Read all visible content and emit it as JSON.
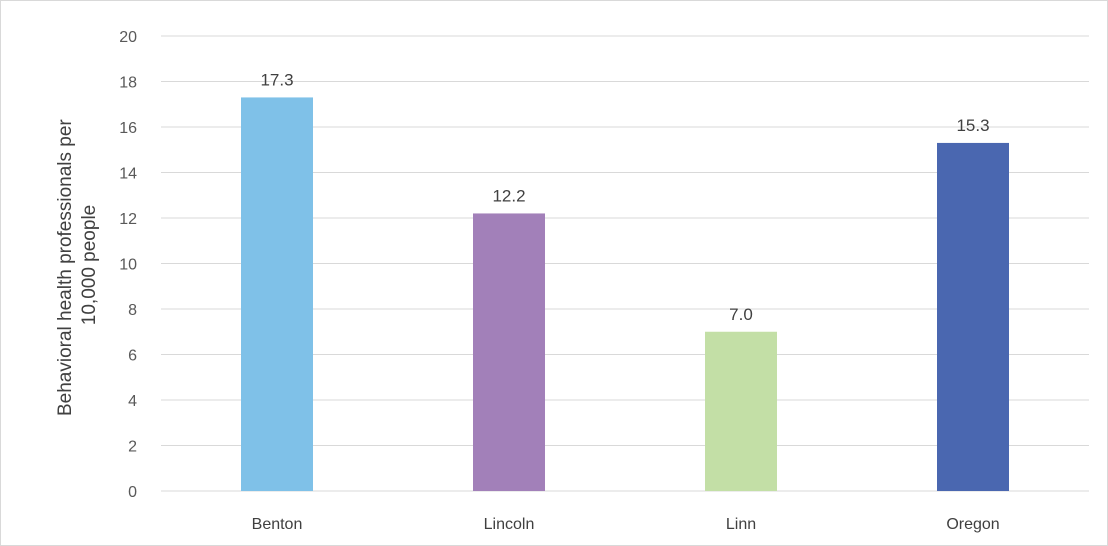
{
  "chart_data": {
    "type": "bar",
    "title": "",
    "xlabel": "",
    "ylabel": "Behavioral health professionals per 10,000 people",
    "ylabel_lines": [
      "Behavioral health professionals per",
      "10,000 people"
    ],
    "categories": [
      "Benton",
      "Lincoln",
      "Linn",
      "Oregon"
    ],
    "values": [
      17.3,
      12.2,
      7.0,
      15.3
    ],
    "data_labels": [
      "17.3",
      "12.2",
      "7.0",
      "15.3"
    ],
    "colors": [
      "#7fc1e8",
      "#a280b9",
      "#c3dfa6",
      "#4a67b0"
    ],
    "ylim": [
      0,
      20
    ],
    "yticks": [
      0,
      2,
      4,
      6,
      8,
      10,
      12,
      14,
      16,
      18,
      20
    ],
    "grid": true,
    "legend": "none"
  }
}
